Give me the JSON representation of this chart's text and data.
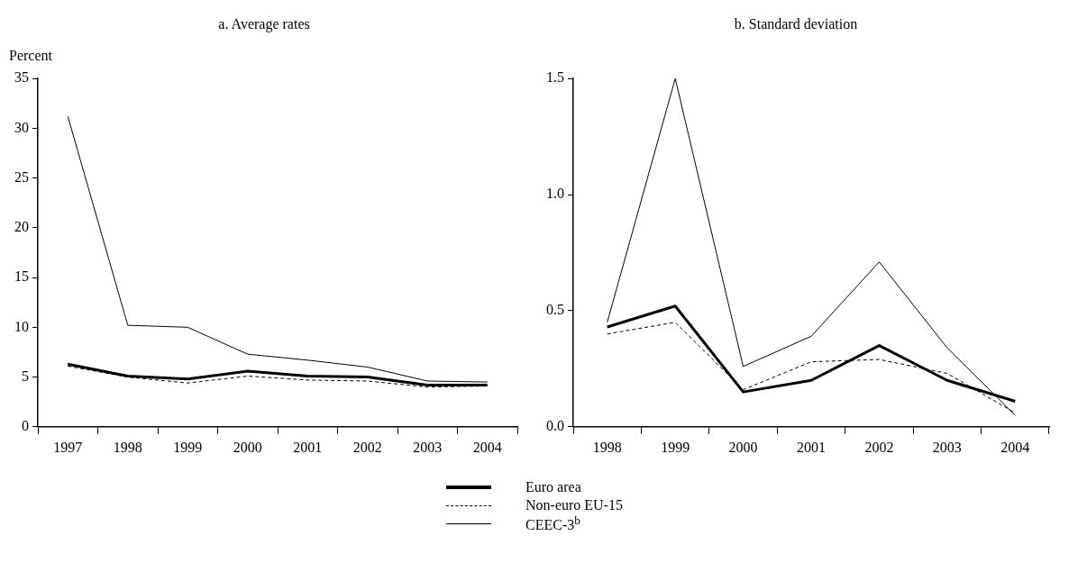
{
  "chart_data": [
    {
      "type": "line",
      "title": "a. Average rates",
      "ylabel": "Percent",
      "categories": [
        "1997",
        "1998",
        "1999",
        "2000",
        "2001",
        "2002",
        "2003",
        "2004"
      ],
      "ylim": [
        0,
        35
      ],
      "yticks": [
        0,
        5,
        10,
        15,
        20,
        25,
        30,
        35
      ],
      "grid": false,
      "legend": "bottom",
      "marker": "none",
      "series": [
        {
          "name": "Euro area",
          "color": "#000000",
          "line_style": "solid",
          "values": [
            6.3,
            5.1,
            4.8,
            5.6,
            5.1,
            5.0,
            4.2,
            4.2
          ]
        },
        {
          "name": "Non-euro EU-15",
          "color": "#000000",
          "line_style": "dashed",
          "values": [
            6.1,
            5.0,
            4.4,
            5.1,
            4.7,
            4.6,
            4.0,
            4.1
          ]
        },
        {
          "name": "CEEC-3$^{b}$",
          "color": "#000000",
          "line_style": "solid",
          "values": [
            31.2,
            10.2,
            10.0,
            7.3,
            6.7,
            6.0,
            4.6,
            4.5
          ]
        }
      ]
    },
    {
      "type": "line",
      "title": "b. Standard deviation",
      "categories": [
        "1998",
        "1999",
        "2000",
        "2001",
        "2002",
        "2003",
        "2004"
      ],
      "ylim": [
        0,
        1.5
      ],
      "yticks": [
        {
          "value": 0,
          "label": "0.0"
        },
        {
          "value": 0.5,
          "label": "0.5"
        },
        {
          "value": 1,
          "label": "1.0"
        },
        {
          "value": 1.5,
          "label": "1.5"
        }
      ],
      "grid": false,
      "legend": "bottom",
      "marker": "none",
      "series": [
        {
          "name": "Euro area",
          "color": "#000000",
          "line_style": "solid",
          "values": [
            0.43,
            0.52,
            0.15,
            0.2,
            0.35,
            0.2,
            0.11
          ]
        },
        {
          "name": "Non-euro EU-15",
          "color": "#000000",
          "line_style": "dashed",
          "values": [
            0.4,
            0.45,
            0.16,
            0.28,
            0.29,
            0.23,
            0.06
          ]
        },
        {
          "name": "CEEC-3$^{b}$",
          "color": "#000000",
          "line_style": "solid",
          "values": [
            0.45,
            1.5,
            0.26,
            0.39,
            0.71,
            0.34,
            0.05
          ]
        }
      ]
    }
  ]
}
